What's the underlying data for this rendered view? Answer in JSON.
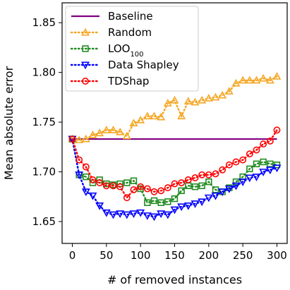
{
  "chart_data": {
    "type": "line",
    "xlabel": "# of removed instances",
    "ylabel": "Mean absolute error",
    "xlim": [
      -15,
      315
    ],
    "ylim": [
      1.628,
      1.87
    ],
    "xticks": [
      0,
      50,
      100,
      150,
      200,
      250,
      300
    ],
    "yticks": [
      1.65,
      1.7,
      1.75,
      1.8,
      1.85
    ],
    "ytick_labels": [
      "1.65",
      "1.70",
      "1.75",
      "1.80",
      "1.85"
    ],
    "grid": false,
    "legend_position": "top-left",
    "series": [
      {
        "name": "Baseline",
        "name_main": "Baseline",
        "color": "#800080",
        "marker": "none",
        "line": "solid",
        "x": [
          0,
          300
        ],
        "y": [
          1.733,
          1.733
        ]
      },
      {
        "name": "Random",
        "name_main": "Random",
        "color": "#f5a623",
        "marker": "triangle-up",
        "line": "dotted",
        "x": [
          0,
          10,
          20,
          30,
          40,
          50,
          60,
          70,
          80,
          90,
          100,
          110,
          120,
          130,
          140,
          150,
          160,
          170,
          180,
          190,
          200,
          210,
          220,
          230,
          240,
          250,
          260,
          270,
          280,
          290,
          300
        ],
        "y": [
          1.733,
          1.732,
          1.733,
          1.737,
          1.739,
          1.742,
          1.742,
          1.74,
          1.736,
          1.749,
          1.752,
          1.756,
          1.756,
          1.755,
          1.769,
          1.772,
          1.756,
          1.771,
          1.77,
          1.772,
          1.774,
          1.775,
          1.777,
          1.781,
          1.789,
          1.792,
          1.792,
          1.792,
          1.794,
          1.792,
          1.796
        ]
      },
      {
        "name": "LOO100",
        "name_main": "LOO",
        "name_sub": "100",
        "color": "#228b22",
        "marker": "square",
        "line": "dotted",
        "x": [
          0,
          10,
          20,
          30,
          40,
          50,
          60,
          70,
          80,
          90,
          100,
          110,
          120,
          130,
          140,
          150,
          160,
          170,
          180,
          190,
          200,
          210,
          220,
          230,
          240,
          250,
          260,
          270,
          280,
          290,
          300
        ],
        "y": [
          1.733,
          1.697,
          1.695,
          1.689,
          1.692,
          1.688,
          1.687,
          1.688,
          1.689,
          1.691,
          1.683,
          1.669,
          1.671,
          1.669,
          1.67,
          1.673,
          1.681,
          1.686,
          1.685,
          1.686,
          1.69,
          1.682,
          1.68,
          1.684,
          1.69,
          1.695,
          1.703,
          1.708,
          1.71,
          1.708,
          1.707
        ]
      },
      {
        "name": "Data Shapley",
        "name_main": "Data Shapley",
        "color": "#0000ff",
        "marker": "triangle-down",
        "line": "dotted",
        "x": [
          0,
          10,
          20,
          30,
          40,
          50,
          60,
          70,
          80,
          90,
          100,
          110,
          120,
          130,
          140,
          150,
          160,
          170,
          180,
          190,
          200,
          210,
          220,
          230,
          240,
          250,
          260,
          270,
          280,
          290,
          300
        ],
        "y": [
          1.733,
          1.697,
          1.68,
          1.676,
          1.666,
          1.659,
          1.657,
          1.658,
          1.657,
          1.658,
          1.659,
          1.656,
          1.655,
          1.658,
          1.657,
          1.662,
          1.665,
          1.666,
          1.668,
          1.67,
          1.674,
          1.676,
          1.68,
          1.683,
          1.686,
          1.69,
          1.694,
          1.695,
          1.7,
          1.702,
          1.704
        ]
      },
      {
        "name": "TDShap",
        "name_main": "TDShap",
        "color": "#ff0000",
        "marker": "circle",
        "line": "dotted",
        "x": [
          0,
          10,
          20,
          30,
          40,
          50,
          60,
          70,
          80,
          90,
          100,
          110,
          120,
          130,
          140,
          150,
          160,
          170,
          180,
          190,
          200,
          210,
          220,
          230,
          240,
          250,
          260,
          270,
          280,
          290,
          300
        ],
        "y": [
          1.733,
          1.712,
          1.705,
          1.692,
          1.689,
          1.686,
          1.686,
          1.685,
          1.674,
          1.682,
          1.685,
          1.683,
          1.68,
          1.681,
          1.684,
          1.688,
          1.689,
          1.692,
          1.694,
          1.697,
          1.697,
          1.698,
          1.702,
          1.707,
          1.71,
          1.712,
          1.718,
          1.722,
          1.728,
          1.731,
          1.742
        ]
      }
    ]
  }
}
